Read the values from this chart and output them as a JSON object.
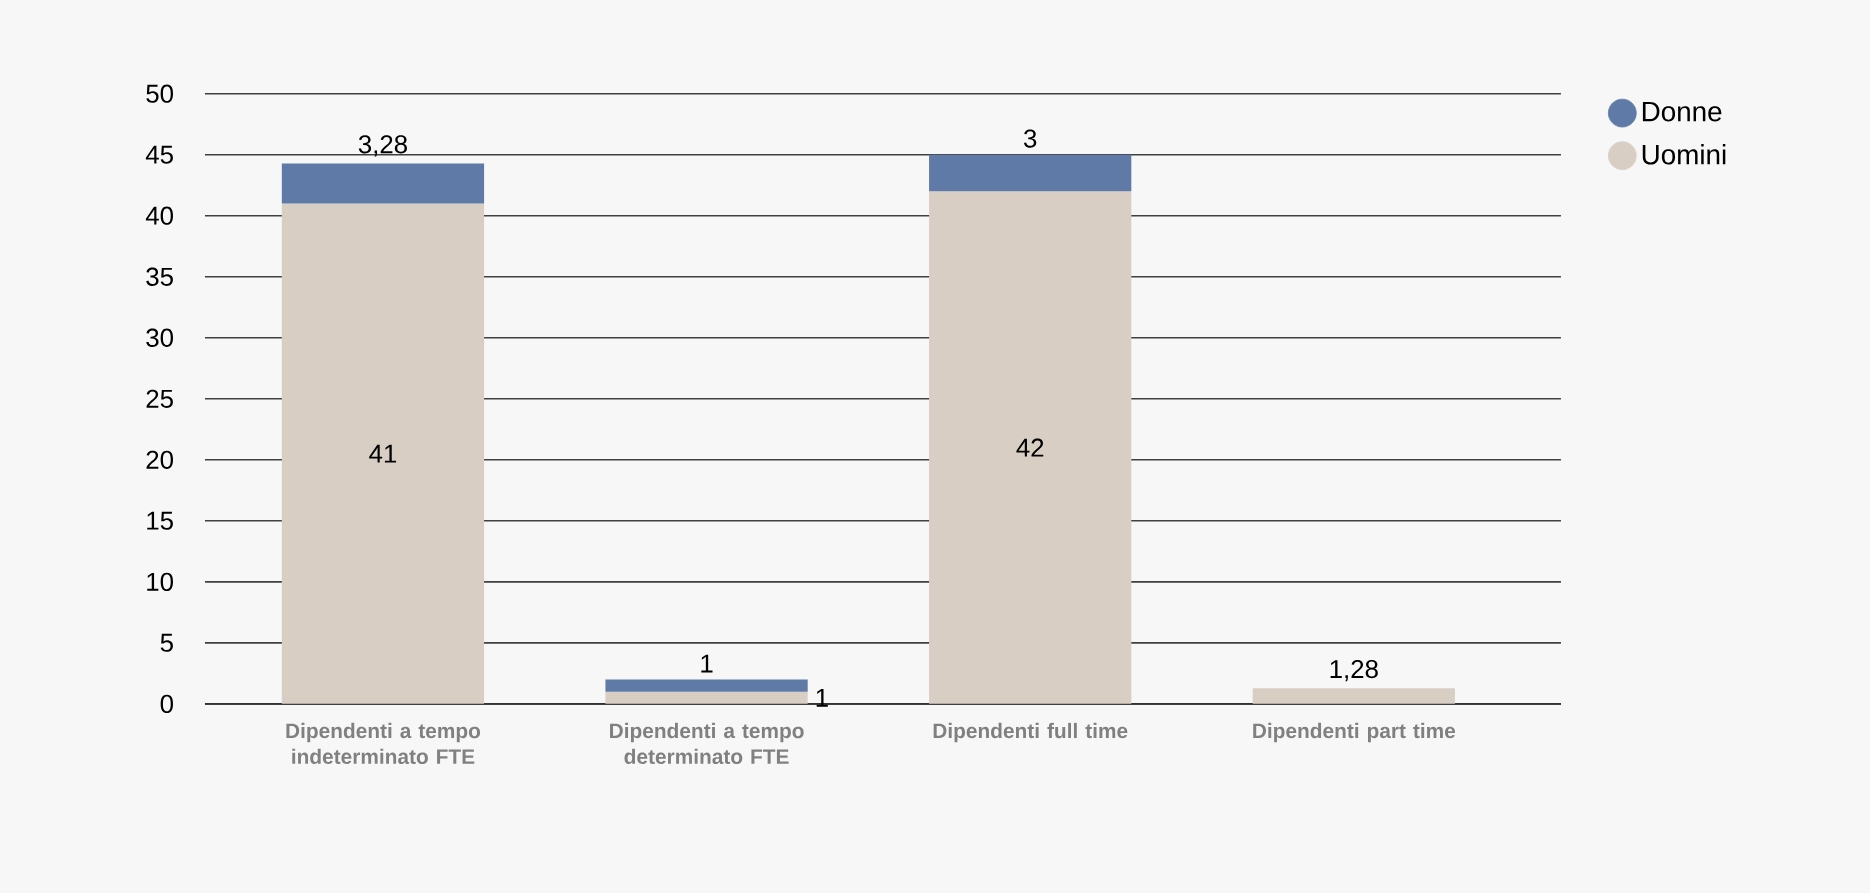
{
  "chart_data": {
    "type": "bar",
    "stacked": true,
    "categories": [
      "Dipendenti a tempo indeterminato FTE",
      "Dipendenti a tempo determinato FTE",
      "Dipendenti full time",
      "Dipendenti part time"
    ],
    "series": [
      {
        "name": "Uomini",
        "color": "#d8cec4",
        "values": [
          41,
          1,
          42,
          1.28
        ],
        "value_labels": [
          "41",
          "1",
          "42",
          "1,28"
        ]
      },
      {
        "name": "Donne",
        "color": "#5f7aa6",
        "values": [
          3.28,
          1,
          3,
          null
        ],
        "value_labels": [
          "3,28",
          "1",
          "3",
          null
        ]
      }
    ],
    "ylim": [
      0,
      50
    ],
    "yticks": [
      0,
      5,
      10,
      15,
      20,
      25,
      30,
      35,
      40,
      45,
      50
    ],
    "grid": "y",
    "legend": "top right"
  }
}
